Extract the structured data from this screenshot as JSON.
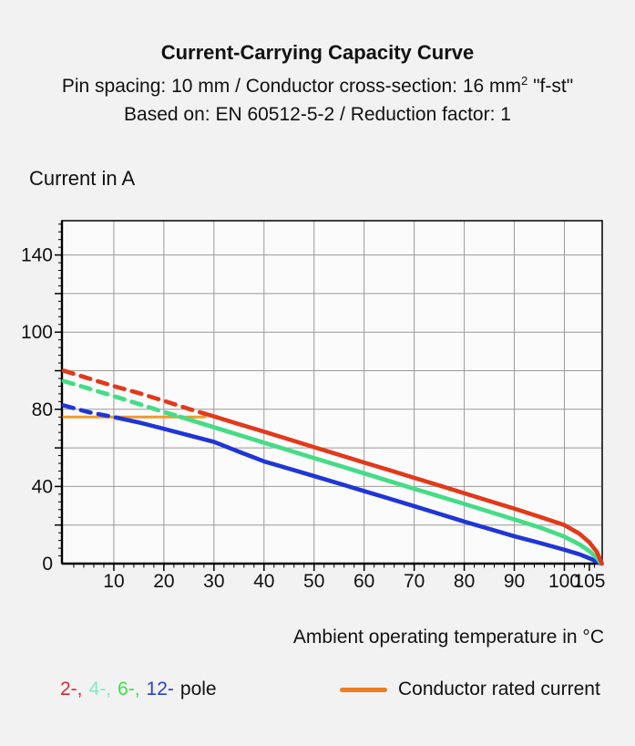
{
  "title": {
    "line1": "Current-Carrying Capacity Curve",
    "line2_pre": "Pin spacing: 10 mm / Conductor cross-section: 16 mm",
    "line2_sup": "2",
    "line2_post": " \"f-st\"",
    "line3": "Based on: EN 60512-5-2 / Reduction factor: 1"
  },
  "y_axis_title": "Current in A",
  "x_axis_title": "Ambient operating temperature in °C",
  "legend_poles": {
    "items": [
      {
        "label": "2-,",
        "color": "#D92B35"
      },
      {
        "label": "4-,",
        "color": "#84E8C8"
      },
      {
        "label": "6-,",
        "color": "#41DE4B"
      },
      {
        "label": "12-",
        "color": "#2441D6"
      }
    ],
    "suffix": "pole"
  },
  "legend_rated": {
    "label": "Conductor rated current",
    "color": "#ED7D23"
  },
  "chart_data": {
    "type": "line",
    "title": "Current-Carrying Capacity Curve",
    "xlabel": "Ambient operating temperature in °C",
    "ylabel": "Current in A",
    "x_range": [
      0,
      107.5
    ],
    "x_tick_labels": [
      10,
      20,
      30,
      40,
      50,
      60,
      70,
      80,
      90,
      100,
      105
    ],
    "x_gridlines": [
      10,
      20,
      30,
      40,
      50,
      60,
      70,
      80,
      90,
      100
    ],
    "x_minor_step": 2,
    "y_tick_labels": [
      0,
      40,
      80,
      100,
      140
    ],
    "y_scale_note": "non-linear axis: equally spaced gridlines at 0,20,40,60,80,90,100,120,140 A",
    "y_stops": [
      [
        0,
        0
      ],
      [
        20,
        1
      ],
      [
        40,
        2
      ],
      [
        60,
        3
      ],
      [
        80,
        4
      ],
      [
        90,
        5
      ],
      [
        100,
        6
      ],
      [
        120,
        7
      ],
      [
        140,
        8
      ]
    ],
    "grid": true,
    "grid_color": "#9a9a9a",
    "rated_current": {
      "label": "Conductor rated current",
      "value_A": 76,
      "t_range_C": [
        0,
        28.2
      ],
      "color": "#F09A2E"
    },
    "series": [
      {
        "name": "12-pole",
        "color": "#1F35D8",
        "dashed_until_C": 10.5,
        "points": [
          [
            0,
            81
          ],
          [
            5,
            78.5
          ],
          [
            10,
            76
          ],
          [
            15,
            73.2
          ],
          [
            20,
            69.9
          ],
          [
            25,
            66.5
          ],
          [
            30,
            63.1
          ],
          [
            35,
            58
          ],
          [
            40,
            53
          ],
          [
            45,
            49.2
          ],
          [
            50,
            45.4
          ],
          [
            55,
            41.5
          ],
          [
            60,
            37.6
          ],
          [
            65,
            33.7
          ],
          [
            70,
            29.8
          ],
          [
            75,
            25.8
          ],
          [
            80,
            21.8
          ],
          [
            85,
            18
          ],
          [
            90,
            14.2
          ],
          [
            95,
            10.8
          ],
          [
            100,
            7.2
          ],
          [
            103,
            4.8
          ],
          [
            105.5,
            2.2
          ],
          [
            107.3,
            0
          ]
        ]
      },
      {
        "name": "4-pole",
        "color": "#7CE3B4",
        "dashed_until_C": 23.2,
        "coincides_with": "6-pole",
        "points": [
          [
            0,
            87.3
          ],
          [
            5,
            85.4
          ],
          [
            10,
            83.4
          ],
          [
            15,
            81.4
          ],
          [
            20,
            78.6
          ],
          [
            25,
            74.7
          ],
          [
            30,
            70.7
          ],
          [
            35,
            66.7
          ],
          [
            40,
            62.7
          ],
          [
            45,
            58.7
          ],
          [
            50,
            54.7
          ],
          [
            55,
            50.8
          ],
          [
            60,
            46.8
          ],
          [
            65,
            42.8
          ],
          [
            70,
            38.8
          ],
          [
            75,
            34.9
          ],
          [
            80,
            30.9
          ],
          [
            85,
            26.9
          ],
          [
            90,
            22.9
          ],
          [
            95,
            18.8
          ],
          [
            100,
            14
          ],
          [
            103,
            10
          ],
          [
            105,
            6.5
          ],
          [
            106.5,
            3
          ],
          [
            107.4,
            0
          ]
        ]
      },
      {
        "name": "6-pole",
        "color": "#45DC86",
        "dashed_until_C": 23.2,
        "points": [
          [
            0,
            87.3
          ],
          [
            5,
            85.4
          ],
          [
            10,
            83.4
          ],
          [
            15,
            81.4
          ],
          [
            20,
            78.6
          ],
          [
            25,
            74.7
          ],
          [
            30,
            70.7
          ],
          [
            35,
            66.7
          ],
          [
            40,
            62.7
          ],
          [
            45,
            58.7
          ],
          [
            50,
            54.7
          ],
          [
            55,
            50.8
          ],
          [
            60,
            46.8
          ],
          [
            65,
            42.8
          ],
          [
            70,
            38.8
          ],
          [
            75,
            34.9
          ],
          [
            80,
            30.9
          ],
          [
            85,
            26.9
          ],
          [
            90,
            22.9
          ],
          [
            95,
            18.8
          ],
          [
            100,
            14
          ],
          [
            103,
            10
          ],
          [
            105,
            6.5
          ],
          [
            106.5,
            3
          ],
          [
            107.4,
            0
          ]
        ]
      },
      {
        "name": "2-pole",
        "color": "#E2391B",
        "dashed_until_C": 28.2,
        "points": [
          [
            0,
            90
          ],
          [
            5,
            88
          ],
          [
            10,
            86
          ],
          [
            15,
            84.2
          ],
          [
            20,
            82.2
          ],
          [
            25,
            80.1
          ],
          [
            30,
            76.3
          ],
          [
            35,
            72.3
          ],
          [
            40,
            68.4
          ],
          [
            45,
            64.4
          ],
          [
            50,
            60.4
          ],
          [
            55,
            56.4
          ],
          [
            60,
            52.4
          ],
          [
            65,
            48.5
          ],
          [
            70,
            44.5
          ],
          [
            75,
            40.5
          ],
          [
            80,
            36.5
          ],
          [
            85,
            32.5
          ],
          [
            90,
            28.5
          ],
          [
            95,
            24.3
          ],
          [
            100,
            20
          ],
          [
            103,
            15.5
          ],
          [
            105,
            11
          ],
          [
            106.5,
            6
          ],
          [
            107.5,
            0
          ]
        ]
      }
    ]
  }
}
